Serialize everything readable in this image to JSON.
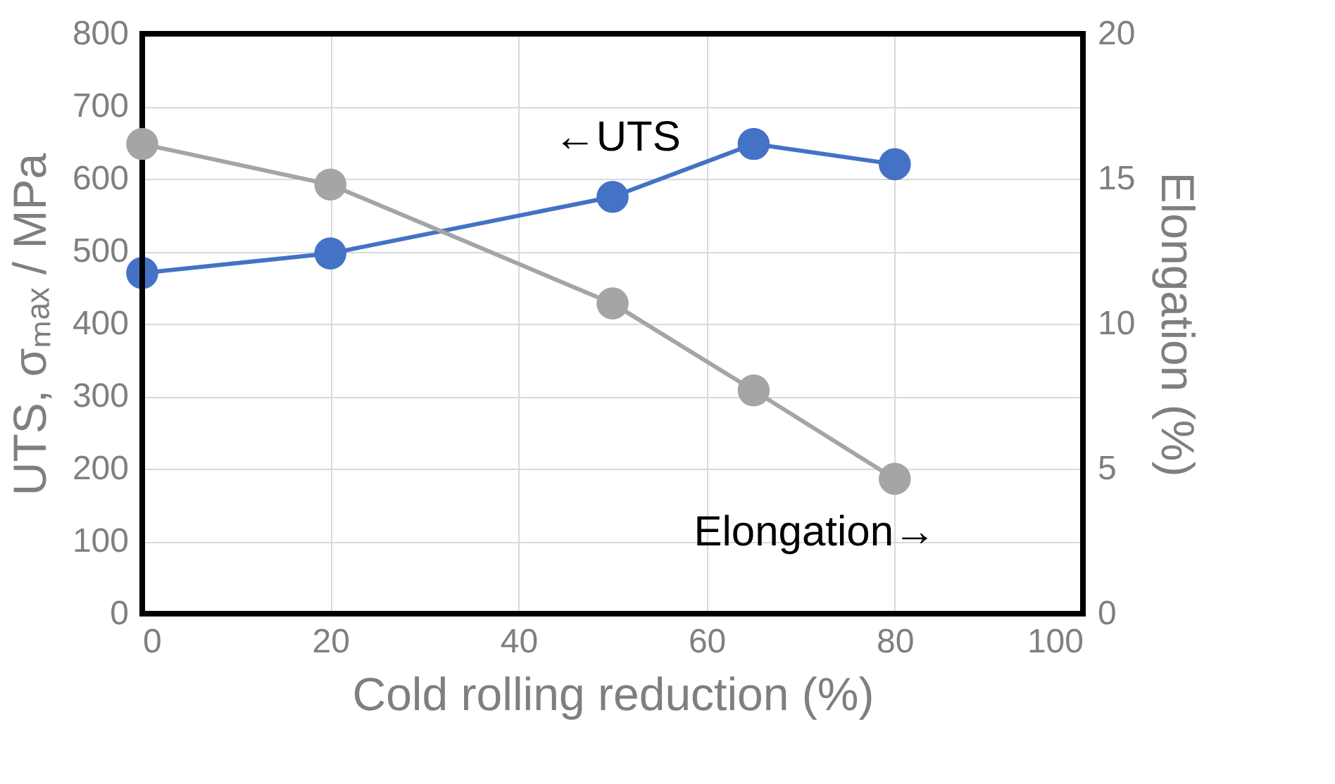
{
  "chart_data": {
    "type": "line",
    "xlabel": "Cold rolling reduction (%)",
    "ylabel": "UTS,  σₘₐₓ / MPa",
    "y2label": "Elongation (%)",
    "x": [
      0,
      20,
      50,
      65,
      80
    ],
    "series": [
      {
        "color": "#4472c4",
        "values": [
          470,
          497,
          575,
          648,
          620
        ]
      },
      {
        "color": "#a5a5a5",
        "values": [
          16.2,
          14.8,
          10.7,
          7.7,
          4.65
        ],
        "axis": "y2"
      }
    ],
    "xlim": [
      0,
      100
    ],
    "xticks": [
      0,
      20,
      40,
      60,
      80,
      100
    ],
    "ylim": [
      0,
      800
    ],
    "yticks": [
      0,
      100,
      200,
      300,
      400,
      500,
      600,
      700,
      800
    ],
    "y2lim": [
      0,
      20
    ],
    "y2ticks": [
      0,
      5,
      10,
      15,
      20
    ],
    "annotations": [
      "←UTS",
      "Elongation→"
    ],
    "grid": true,
    "marker": "circle",
    "line_style": "solid"
  }
}
